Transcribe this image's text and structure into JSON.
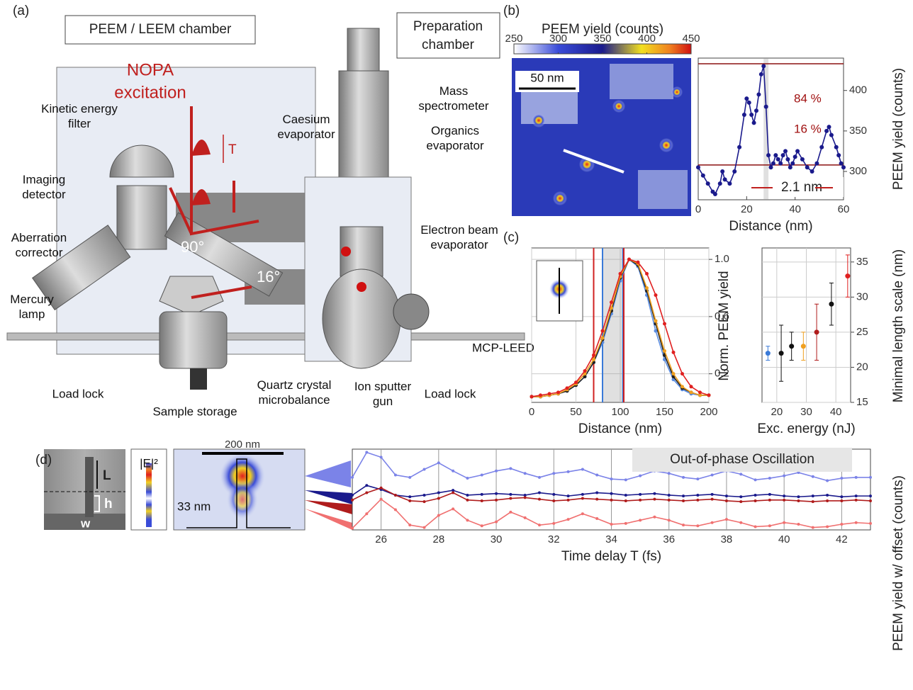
{
  "panel_labels": [
    "(a)",
    "(b)",
    "(c)",
    "(d)"
  ],
  "a": {
    "peem_box": "PEEM / LEEM chamber",
    "prep_box": [
      "Preparation",
      "chamber"
    ],
    "nopa": [
      "NOPA",
      "excitation"
    ],
    "delay": "T",
    "angles": [
      "90°",
      "16°"
    ],
    "labels": [
      {
        "lines": [
          "Kinetic energy",
          "filter"
        ]
      },
      {
        "lines": [
          "Imaging",
          "detector"
        ]
      },
      {
        "lines": [
          "Aberration",
          "corrector"
        ]
      },
      {
        "lines": [
          "Mercury",
          "lamp"
        ]
      },
      {
        "lines": [
          "Load lock"
        ]
      },
      {
        "lines": [
          "Sample storage"
        ]
      },
      {
        "lines": [
          "Quartz crystal",
          "microbalance"
        ]
      },
      {
        "lines": [
          "Ion sputter",
          "gun"
        ]
      },
      {
        "lines": [
          "Load lock"
        ]
      },
      {
        "lines": [
          "Caesium",
          "evaporator"
        ]
      },
      {
        "lines": [
          "Mass",
          "spectrometer"
        ]
      },
      {
        "lines": [
          "Organics",
          "evaporator"
        ]
      },
      {
        "lines": [
          "Electron beam",
          "evaporator"
        ]
      },
      {
        "lines": [
          "MCP-LEED"
        ]
      }
    ]
  },
  "b_image": {
    "colorbar": {
      "title": "PEEM yield (counts)",
      "ticks": [
        250,
        300,
        350,
        400,
        450
      ]
    },
    "scale_bar": "50 nm"
  },
  "d_images": {
    "sem_labels": [
      "L",
      "h",
      "w"
    ],
    "field_label": "|E|²",
    "scale_bar": "200 nm",
    "spacing": "33 nm"
  },
  "chart_data": [
    {
      "type": "line",
      "xlabel": "Distance (nm)",
      "ylabel": "PEEM yield (counts)",
      "x": [
        0,
        2,
        4,
        6,
        7,
        9,
        10,
        11,
        13,
        15,
        17,
        19,
        20,
        21,
        22,
        23,
        24,
        25,
        26,
        27,
        28,
        29,
        30,
        31,
        32,
        33,
        34,
        35,
        36,
        37,
        38,
        39,
        40,
        41,
        43,
        45,
        47,
        49,
        51,
        53,
        54,
        55,
        57,
        58,
        59,
        60
      ],
      "series": [
        {
          "color": "#1a1a8c",
          "values": [
            305,
            295,
            285,
            275,
            272,
            285,
            300,
            290,
            285,
            300,
            330,
            370,
            390,
            385,
            370,
            360,
            375,
            395,
            420,
            430,
            380,
            320,
            305,
            310,
            320,
            315,
            310,
            320,
            325,
            315,
            305,
            310,
            318,
            325,
            315,
            305,
            300,
            310,
            330,
            350,
            355,
            345,
            330,
            320,
            310,
            305
          ]
        }
      ],
      "xlim": [
        0,
        60
      ],
      "xticks": [
        0,
        20,
        40,
        60
      ],
      "ylim": [
        265,
        440
      ],
      "yticks": [
        300,
        350,
        400
      ],
      "reference_lines": [
        433,
        308
      ],
      "band": [
        27,
        29
      ],
      "annotations": [
        "84 %",
        "16 %",
        "2.1 nm"
      ]
    },
    {
      "type": "line",
      "xlabel": "Distance (nm)",
      "ylabel": "Norm. PEEM yield",
      "x": [
        0,
        10,
        20,
        30,
        40,
        50,
        60,
        70,
        80,
        90,
        100,
        110,
        120,
        130,
        140,
        150,
        160,
        170,
        180,
        190,
        200
      ],
      "series": [
        {
          "color": "#5b8de0",
          "values": [
            0.04,
            0.04,
            0.05,
            0.06,
            0.08,
            0.12,
            0.18,
            0.28,
            0.42,
            0.62,
            0.85,
            1.0,
            0.95,
            0.75,
            0.5,
            0.3,
            0.16,
            0.09,
            0.06,
            0.05,
            0.05
          ]
        },
        {
          "color": "#222222",
          "values": [
            0.04,
            0.04,
            0.05,
            0.06,
            0.08,
            0.12,
            0.18,
            0.28,
            0.44,
            0.64,
            0.87,
            1.0,
            0.96,
            0.78,
            0.55,
            0.33,
            0.18,
            0.1,
            0.07,
            0.05,
            0.05
          ]
        },
        {
          "color": "#f0a020",
          "values": [
            0.04,
            0.04,
            0.05,
            0.06,
            0.09,
            0.13,
            0.2,
            0.3,
            0.45,
            0.66,
            0.88,
            1.0,
            0.97,
            0.8,
            0.57,
            0.36,
            0.2,
            0.11,
            0.07,
            0.05,
            0.05
          ]
        },
        {
          "color": "#e02020",
          "values": [
            0.04,
            0.05,
            0.06,
            0.07,
            0.1,
            0.14,
            0.22,
            0.33,
            0.5,
            0.7,
            0.9,
            1.0,
            0.98,
            0.9,
            0.75,
            0.55,
            0.35,
            0.2,
            0.11,
            0.07,
            0.05
          ]
        }
      ],
      "xlim": [
        0,
        200
      ],
      "xticks": [
        0,
        50,
        100,
        150,
        200
      ],
      "ylim": [
        0,
        1.08
      ],
      "yticks": [
        0.2,
        0.6,
        {
          "value": 1,
          "label": "1.0"
        }
      ],
      "grid": true,
      "vlines": [
        {
          "value": 70,
          "color": "#d02020"
        },
        {
          "value": 80,
          "color": "#3a7ad8"
        },
        {
          "value": 103,
          "color": "#3a7ad8"
        },
        {
          "value": 104,
          "color": "#d02020"
        }
      ],
      "band": [
        80,
        104
      ]
    },
    {
      "type": "errorbar",
      "xlabel": "Exc. energy (nJ)",
      "ylabel": "Minimal length scale (nm)",
      "x": [
        17,
        21.5,
        25,
        29,
        33.5,
        38.5,
        44
      ],
      "values": [
        22,
        22,
        23,
        23,
        25,
        29,
        33
      ],
      "errors": [
        1,
        4,
        2,
        2,
        4,
        3,
        3
      ],
      "colors": [
        "#3a7ad8",
        "#111111",
        "#111111",
        "#f0a020",
        "#b01c1c",
        "#111111",
        "#e02020"
      ],
      "xlim": [
        15,
        45
      ],
      "xticks": [
        20,
        30,
        40
      ],
      "ylim": [
        15,
        37
      ],
      "yticks": [
        15,
        20,
        25,
        30,
        35
      ],
      "grid": true
    },
    {
      "type": "line",
      "xlabel": "Time delay T (fs)",
      "ylabel": "PEEM yield w/ offset (counts)",
      "annotation": "Out-of-phase Oscillation",
      "x": [
        25,
        25.5,
        26,
        26.5,
        27,
        27.5,
        28,
        28.5,
        29,
        29.5,
        30,
        30.5,
        31,
        31.5,
        32,
        32.5,
        33,
        33.5,
        34,
        34.5,
        35,
        35.5,
        36,
        36.5,
        37,
        37.5,
        38,
        38.5,
        39,
        39.5,
        40,
        40.5,
        41,
        41.5,
        42,
        42.5,
        43
      ],
      "series": [
        {
          "color": "#7b83e8",
          "values": [
            6.5,
            9.6,
            9.0,
            6.8,
            6.5,
            7.5,
            8.3,
            7.3,
            6.4,
            6.8,
            7.3,
            7.6,
            7.0,
            6.5,
            7.0,
            7.2,
            7.5,
            6.8,
            6.3,
            6.2,
            6.7,
            7.3,
            7.0,
            6.5,
            6.3,
            6.8,
            7.3,
            6.9,
            6.2,
            6.4,
            6.7,
            7.1,
            6.6,
            6.1,
            6.4,
            6.5,
            6.5
          ]
        },
        {
          "color": "#1a1a8c",
          "values": [
            4.3,
            5.5,
            5.0,
            4.3,
            4.1,
            4.3,
            4.6,
            4.9,
            4.3,
            4.4,
            4.5,
            4.4,
            4.3,
            4.6,
            4.4,
            4.2,
            4.4,
            4.6,
            4.5,
            4.3,
            4.4,
            4.5,
            4.3,
            4.2,
            4.3,
            4.4,
            4.2,
            4.1,
            4.3,
            4.4,
            4.2,
            4.1,
            4.2,
            4.3,
            4.1,
            4.2,
            4.2
          ]
        },
        {
          "color": "#b01c1c",
          "values": [
            3.7,
            4.6,
            5.2,
            4.3,
            3.6,
            3.5,
            3.9,
            4.6,
            3.7,
            3.6,
            3.7,
            3.9,
            4.0,
            3.8,
            3.6,
            3.7,
            3.9,
            3.8,
            3.7,
            3.6,
            3.7,
            3.8,
            3.7,
            3.6,
            3.7,
            3.8,
            3.6,
            3.5,
            3.6,
            3.7,
            3.7,
            3.6,
            3.5,
            3.6,
            3.6,
            3.7,
            3.6
          ]
        },
        {
          "color": "#f07070",
          "values": [
            0.2,
            2.0,
            3.8,
            2.5,
            0.6,
            0.3,
            1.8,
            2.6,
            1.2,
            0.5,
            1.0,
            2.2,
            1.5,
            0.6,
            0.8,
            1.3,
            2.0,
            1.4,
            0.7,
            0.8,
            1.2,
            1.6,
            1.2,
            0.6,
            0.5,
            0.9,
            1.3,
            0.9,
            0.4,
            0.5,
            0.9,
            0.7,
            0.3,
            0.4,
            0.7,
            0.9,
            0.8
          ]
        }
      ],
      "xlim": [
        25,
        43
      ],
      "xticks": [
        26,
        28,
        30,
        32,
        34,
        36,
        38,
        40,
        42
      ],
      "ylim": [
        0,
        10
      ],
      "grid": true
    }
  ]
}
